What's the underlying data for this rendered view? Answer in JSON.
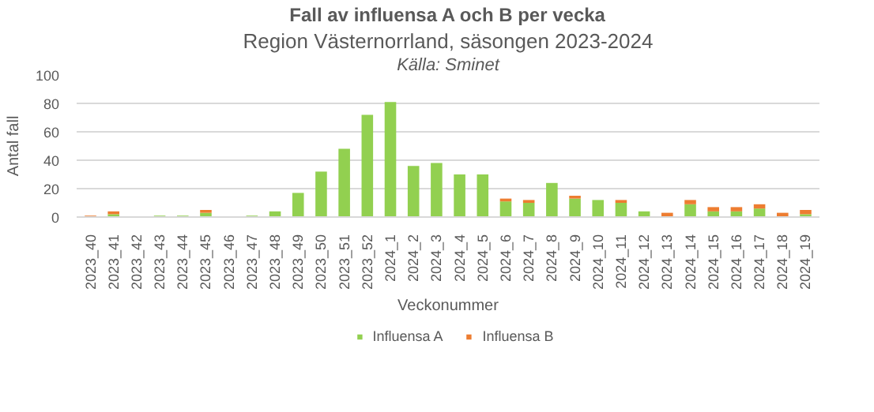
{
  "chart_data": {
    "type": "bar",
    "title": "Fall av influensa A och B per vecka",
    "subtitle": "Region Västernorrland, säsongen 2023-2024",
    "annotations": [
      "Källa: Sminet"
    ],
    "xlabel": "Veckonummer",
    "ylabel": "Antal fall",
    "categories": [
      "2023_40",
      "2023_41",
      "2023_42",
      "2023_43",
      "2023_44",
      "2023_45",
      "2023_46",
      "2023_47",
      "2023_48",
      "2023_49",
      "2023_50",
      "2023_51",
      "2023_52",
      "2024_1",
      "2024_2",
      "2024_3",
      "2024_4",
      "2024_5",
      "2024_6",
      "2024_7",
      "2024_8",
      "2024_9",
      "2024_10",
      "2024_11",
      "2024_12",
      "2024_13",
      "2024_14",
      "2024_15",
      "2024_16",
      "2024_17",
      "2024_18",
      "2024_19"
    ],
    "stacked": true,
    "series": [
      {
        "name": "Influensa A",
        "color": "#92d050",
        "values": [
          0,
          2,
          0,
          1,
          1,
          3,
          0,
          1,
          4,
          17,
          32,
          48,
          72,
          81,
          36,
          38,
          30,
          30,
          11,
          10,
          24,
          13,
          12,
          10,
          4,
          0,
          9,
          4,
          4,
          6,
          0,
          2
        ]
      },
      {
        "name": "Influensa B",
        "color": "#ed7d31",
        "values": [
          1,
          2,
          0,
          0,
          0,
          2,
          0,
          0,
          0,
          0,
          0,
          0,
          0,
          0,
          0,
          0,
          0,
          0,
          2,
          2,
          0,
          2,
          0,
          2,
          0,
          3,
          3,
          3,
          3,
          3,
          3,
          3
        ]
      }
    ],
    "ylim": [
      0,
      100
    ],
    "yticks": [
      0,
      20,
      40,
      60,
      80,
      100
    ],
    "grid": "y",
    "legend": "bottom"
  }
}
